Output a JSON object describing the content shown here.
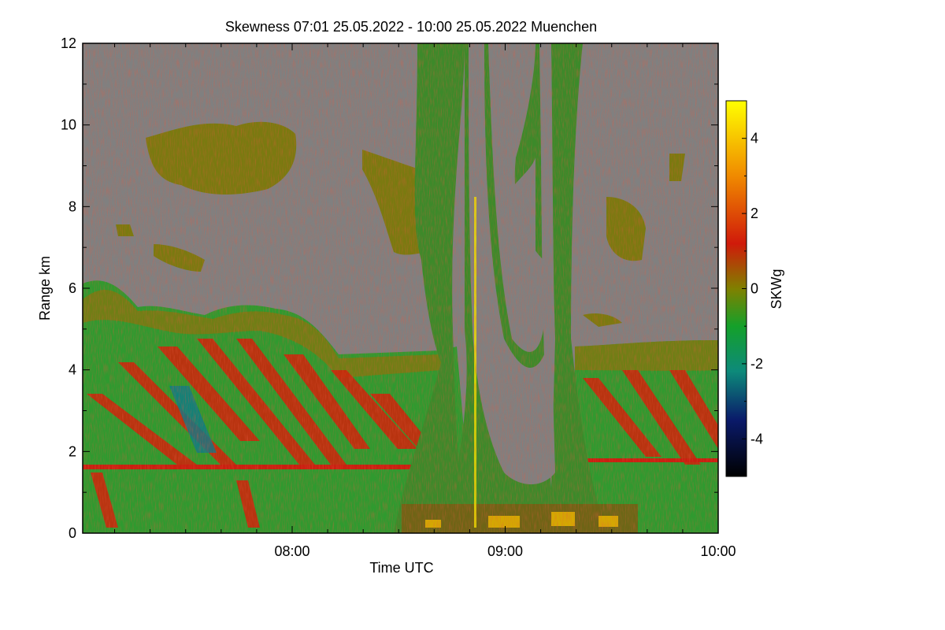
{
  "chart_data": {
    "type": "heatmap",
    "title": "Skewness   07:01 25.05.2022 - 10:00 25.05.2022 Muenchen",
    "xlabel": "Time UTC",
    "ylabel": "Range km",
    "x_range": [
      "07:01",
      "10:00"
    ],
    "x_ticks": [
      "08:00",
      "09:00",
      "10:00"
    ],
    "ylim": [
      0,
      12
    ],
    "y_ticks": [
      "0",
      "2",
      "4",
      "6",
      "8",
      "10",
      "12"
    ],
    "colorbar": {
      "label": "SKWg",
      "range": [
        -5,
        5
      ],
      "ticks": [
        "-4",
        "-2",
        "0",
        "2",
        "4"
      ],
      "colors": [
        "#000000",
        "#0a1a6a",
        "#0d8a7a",
        "#14a02a",
        "#808000",
        "#d01a0a",
        "#f08a00",
        "#ffff00"
      ]
    },
    "no_data_color": "#808080",
    "dominant_colors": {
      "mixing_layer": "#2a9a2a",
      "cloud_tops": "#7a7a10",
      "convective_plumes": "#d0220a"
    }
  }
}
